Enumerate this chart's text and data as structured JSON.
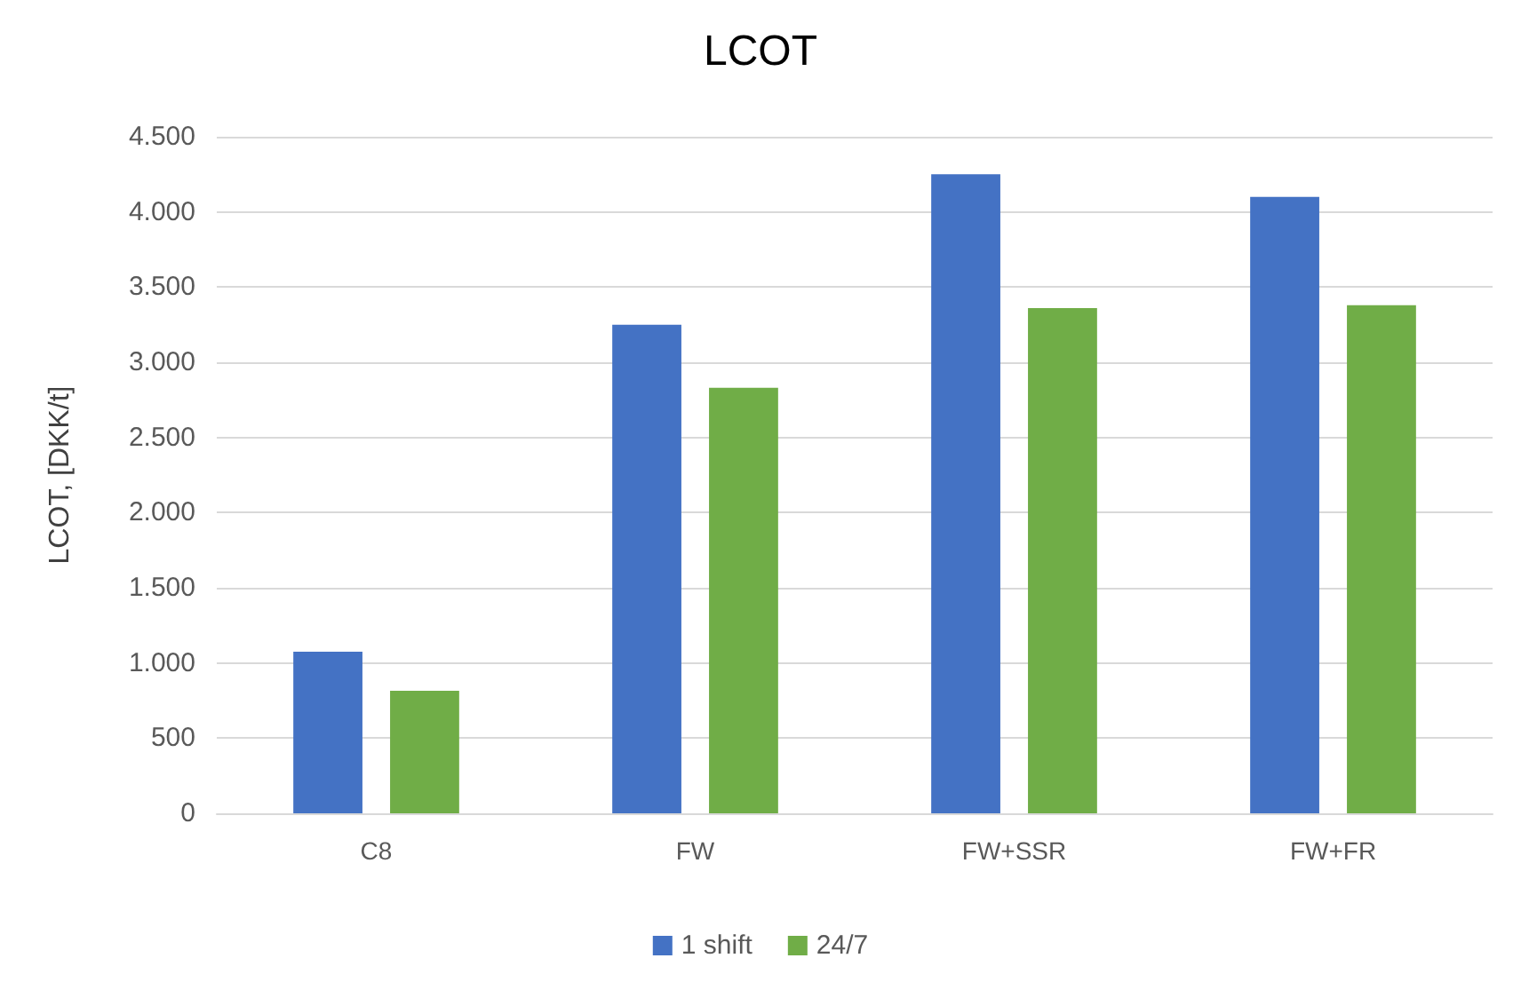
{
  "chart_data": {
    "type": "bar",
    "title": "LCOT",
    "ylabel": "LCOT, [DKK/t]",
    "categories": [
      "C8",
      "FW",
      "FW+SSR",
      "FW+FR"
    ],
    "series": [
      {
        "name": "1 shift",
        "color": "#4472c4",
        "values": [
          1075,
          3250,
          4250,
          4100
        ]
      },
      {
        "name": "24/7",
        "color": "#70ad47",
        "values": [
          815,
          2830,
          3360,
          3380
        ]
      }
    ],
    "ylim": [
      0,
      4500
    ],
    "yticks": [
      {
        "value": 0,
        "label": "0"
      },
      {
        "value": 500,
        "label": "500"
      },
      {
        "value": 1000,
        "label": "1.000"
      },
      {
        "value": 1500,
        "label": "1.500"
      },
      {
        "value": 2000,
        "label": "2.000"
      },
      {
        "value": 2500,
        "label": "2.500"
      },
      {
        "value": 3000,
        "label": "3.000"
      },
      {
        "value": 3500,
        "label": "3.500"
      },
      {
        "value": 4000,
        "label": "4.000"
      },
      {
        "value": 4500,
        "label": "4.500"
      }
    ],
    "grid": "y",
    "legend": "bottom"
  }
}
